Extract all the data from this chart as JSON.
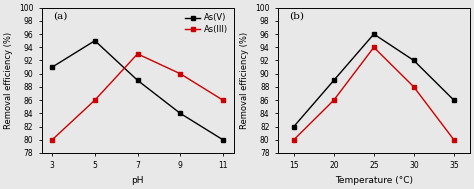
{
  "panel_a": {
    "label": "(a)",
    "xlabel": "pH",
    "ylabel": "Removal efficiency (%)",
    "xlim": [
      2.5,
      11.5
    ],
    "ylim": [
      78,
      100
    ],
    "yticks": [
      78,
      80,
      82,
      84,
      86,
      88,
      90,
      92,
      94,
      96,
      98,
      100
    ],
    "xticks": [
      3,
      5,
      7,
      9,
      11
    ],
    "AsV_x": [
      3,
      5,
      7,
      9,
      11
    ],
    "AsV_y": [
      91,
      95,
      89,
      84,
      80
    ],
    "AsIII_x": [
      3,
      5,
      7,
      9,
      11
    ],
    "AsIII_y": [
      80,
      86,
      93,
      90,
      86
    ],
    "AsV_color": "#000000",
    "AsIII_color": "#cc0000",
    "legend_labels": [
      "As(V)",
      "As(III)"
    ]
  },
  "panel_b": {
    "label": "(b)",
    "xlabel": "Temperature (°C)",
    "ylabel": "Removal efficiency (%)",
    "xlim": [
      13,
      37
    ],
    "ylim": [
      78,
      100
    ],
    "yticks": [
      78,
      80,
      82,
      84,
      86,
      88,
      90,
      92,
      94,
      96,
      98,
      100
    ],
    "xticks": [
      15,
      20,
      25,
      30,
      35
    ],
    "AsV_x": [
      15,
      20,
      25,
      30,
      35
    ],
    "AsV_y": [
      82,
      89,
      96,
      92,
      86
    ],
    "AsIII_x": [
      15,
      20,
      25,
      30,
      35
    ],
    "AsIII_y": [
      80,
      86,
      94,
      88,
      80
    ],
    "AsV_color": "#000000",
    "AsIII_color": "#cc0000"
  },
  "figure_bg": "#e8e8e8",
  "axes_bg": "#e8e8e8"
}
